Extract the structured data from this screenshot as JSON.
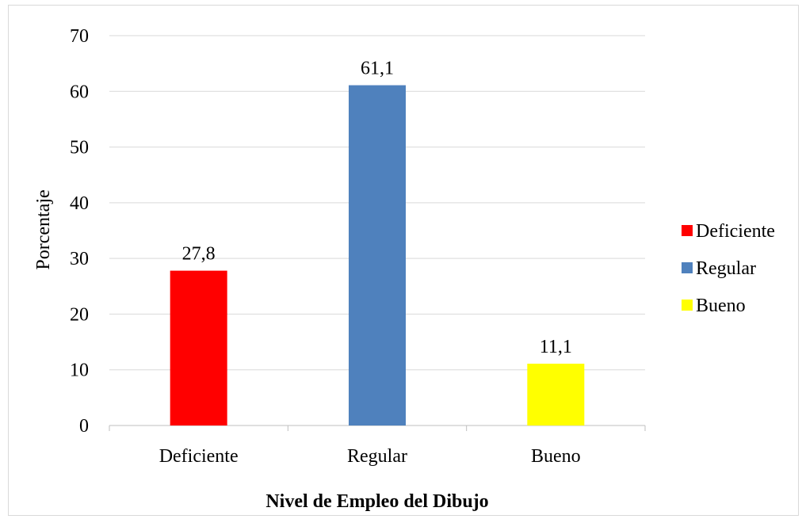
{
  "chart_data": {
    "type": "bar",
    "title": "",
    "xlabel": "Nivel de Empleo del Dibujo",
    "ylabel": "Porcentaje",
    "categories": [
      "Deficiente",
      "Regular",
      "Bueno"
    ],
    "values": [
      27.8,
      61.1,
      11.1
    ],
    "value_labels": [
      "27,8",
      "61,1",
      "11,1"
    ],
    "colors": [
      "#ff0000",
      "#4f81bd",
      "#ffff00"
    ],
    "ylim": [
      0,
      70
    ],
    "yticks": [
      0,
      10,
      20,
      30,
      40,
      50,
      60,
      70
    ],
    "grid": true,
    "legend": {
      "placement": "right",
      "entries": [
        "Deficiente",
        "Regular",
        "Bueno"
      ]
    }
  }
}
